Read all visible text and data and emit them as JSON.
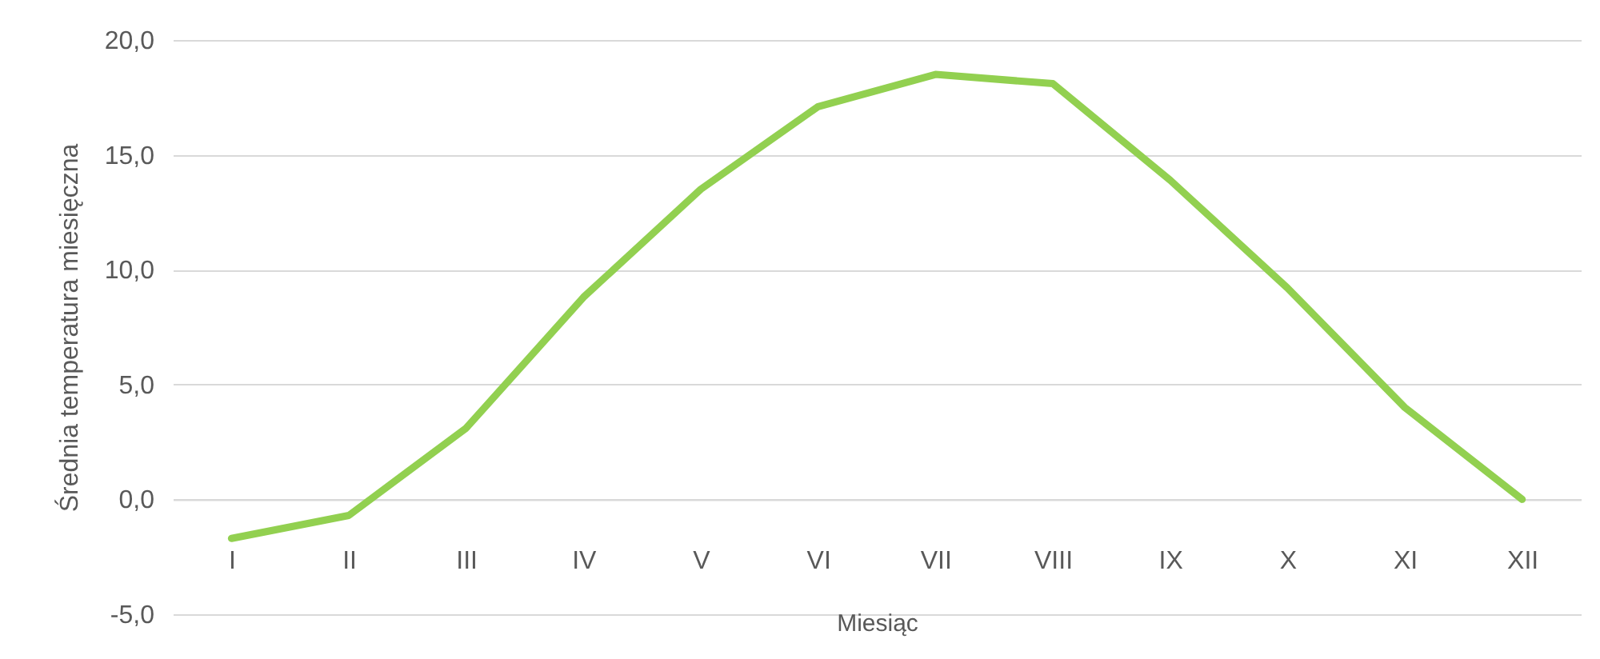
{
  "chart_data": {
    "type": "line",
    "xlabel": "Miesiąc",
    "ylabel": "Średnia temperatura miesięczna",
    "categories": [
      "I",
      "II",
      "III",
      "IV",
      "V",
      "VI",
      "VII",
      "VIII",
      "IX",
      "X",
      "XI",
      "XII"
    ],
    "series": [
      {
        "color": "#92d050",
        "values": [
          -1.7,
          -0.7,
          3.1,
          8.8,
          13.5,
          17.1,
          18.5,
          18.1,
          13.9,
          9.2,
          4.0,
          0.0
        ]
      }
    ],
    "ylim": [
      -5,
      20
    ],
    "yticks": [
      {
        "value": -5,
        "label": "-5,0"
      },
      {
        "value": 0,
        "label": "0,0"
      },
      {
        "value": 5,
        "label": "5,0"
      },
      {
        "value": 10,
        "label": "10,0"
      },
      {
        "value": 15,
        "label": "15,0"
      },
      {
        "value": 20,
        "label": "20,0"
      }
    ],
    "grid": "y",
    "marker": "none",
    "line_style": "solid"
  }
}
